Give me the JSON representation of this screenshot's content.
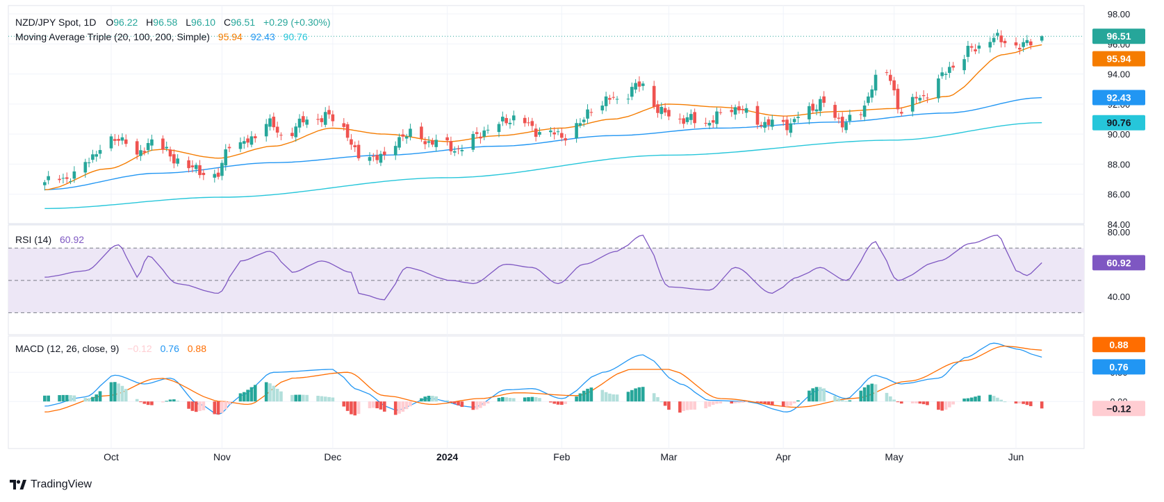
{
  "colors": {
    "up": "#26a69a",
    "down": "#ef5350",
    "ma20": "#f57c00",
    "ma100": "#2196f3",
    "ma200": "#26c6da",
    "rsi": "#7e57c2",
    "rsi_band": "#ede7f6",
    "macd": "#2196f3",
    "signal": "#ff6d00",
    "hist_up_strong": "#26a69a",
    "hist_up_weak": "#b2dfdb",
    "hist_down_strong": "#ef5350",
    "hist_down_weak": "#ffcdd2",
    "grid": "#f0f3fa",
    "text": "#131722"
  },
  "main_legend": {
    "symbol": "NZD/JPY Spot, 1D",
    "o_label": "O",
    "o_value": "96.22",
    "h_label": "H",
    "h_value": "96.58",
    "l_label": "L",
    "l_value": "96.10",
    "c_label": "C",
    "c_value": "96.51",
    "change": "+0.29 (+0.30%)",
    "ma_label": "Moving Average Triple (20, 100, 200, Simple)",
    "ma20_value": "95.94",
    "ma100_value": "92.43",
    "ma200_value": "90.76"
  },
  "rsi_legend": {
    "label": "RSI (14)",
    "value": "60.92"
  },
  "macd_legend": {
    "label": "MACD (12, 26, close, 9)",
    "hist_value": "−0.12",
    "macd_value": "0.76",
    "signal_value": "0.88"
  },
  "price_axis_ticks": [
    "98.00",
    "96.00",
    "94.00",
    "92.00",
    "90.00",
    "88.00",
    "86.00",
    "84.00"
  ],
  "rsi_axis_ticks": [
    "80.00",
    "40.00"
  ],
  "macd_axis_ticks": [
    "0.50",
    "0.00"
  ],
  "price_labels": {
    "last": "96.51",
    "ma20": "95.94",
    "ma100": "92.43",
    "ma200": "90.76"
  },
  "rsi_label_value": "60.92",
  "macd_labels": {
    "signal": "0.88",
    "macd": "0.76",
    "hist": "−0.12"
  },
  "time_axis": [
    {
      "label": "Oct",
      "bold": false
    },
    {
      "label": "Nov",
      "bold": false
    },
    {
      "label": "Dec",
      "bold": false
    },
    {
      "label": "2024",
      "bold": true
    },
    {
      "label": "Feb",
      "bold": false
    },
    {
      "label": "Mar",
      "bold": false
    },
    {
      "label": "Apr",
      "bold": false
    },
    {
      "label": "May",
      "bold": false
    },
    {
      "label": "Jun",
      "bold": false
    }
  ],
  "brand": {
    "name": "TradingView"
  },
  "chart_data": {
    "type": "candlestick",
    "title": "NZD/JPY Spot, 1D",
    "timeframe": "1D",
    "x_range": [
      "2023-09-14",
      "2024-06-10"
    ],
    "month_markers": [
      {
        "label": "Oct",
        "date": "2023-10-02"
      },
      {
        "label": "Nov",
        "date": "2023-11-01"
      },
      {
        "label": "Dec",
        "date": "2023-12-01"
      },
      {
        "label": "2024",
        "date": "2024-01-01"
      },
      {
        "label": "Feb",
        "date": "2024-02-01"
      },
      {
        "label": "Mar",
        "date": "2024-03-01"
      },
      {
        "label": "Apr",
        "date": "2024-04-01"
      },
      {
        "label": "May",
        "date": "2024-05-01"
      },
      {
        "label": "Jun",
        "date": "2024-06-03"
      }
    ],
    "price_panel": {
      "ylim": [
        84,
        98
      ],
      "close_anchors": [
        [
          "2023-09-14",
          86.8
        ],
        [
          "2023-09-22",
          87.2
        ],
        [
          "2023-09-29",
          89.0
        ],
        [
          "2023-10-05",
          89.8
        ],
        [
          "2023-10-09",
          88.4
        ],
        [
          "2023-10-13",
          89.7
        ],
        [
          "2023-10-19",
          88.4
        ],
        [
          "2023-10-25",
          87.6
        ],
        [
          "2023-10-31",
          87.2
        ],
        [
          "2023-11-03",
          89.5
        ],
        [
          "2023-11-08",
          89.4
        ],
        [
          "2023-11-13",
          91.0
        ],
        [
          "2023-11-17",
          89.8
        ],
        [
          "2023-11-23",
          90.8
        ],
        [
          "2023-11-29",
          91.2
        ],
        [
          "2023-12-04",
          90.4
        ],
        [
          "2023-12-08",
          88.4
        ],
        [
          "2023-12-13",
          88.6
        ],
        [
          "2023-12-15",
          88.3
        ],
        [
          "2023-12-20",
          90.0
        ],
        [
          "2023-12-28",
          89.5
        ],
        [
          "2024-01-04",
          89.0
        ],
        [
          "2024-01-12",
          90.3
        ],
        [
          "2024-01-19",
          91.1
        ],
        [
          "2024-01-26",
          90.2
        ],
        [
          "2024-02-01",
          89.9
        ],
        [
          "2024-02-06",
          90.6
        ],
        [
          "2024-02-09",
          91.8
        ],
        [
          "2024-02-16",
          92.4
        ],
        [
          "2024-02-23",
          93.3
        ],
        [
          "2024-02-28",
          91.4
        ],
        [
          "2024-03-05",
          91.0
        ],
        [
          "2024-03-11",
          90.8
        ],
        [
          "2024-03-19",
          91.8
        ],
        [
          "2024-03-25",
          90.8
        ],
        [
          "2024-04-01",
          90.6
        ],
        [
          "2024-04-08",
          91.5
        ],
        [
          "2024-04-11",
          92.2
        ],
        [
          "2024-04-16",
          90.8
        ],
        [
          "2024-04-22",
          91.3
        ],
        [
          "2024-04-26",
          93.8
        ],
        [
          "2024-04-29",
          93.9
        ],
        [
          "2024-05-03",
          91.6
        ],
        [
          "2024-05-08",
          92.4
        ],
        [
          "2024-05-13",
          93.6
        ],
        [
          "2024-05-17",
          94.6
        ],
        [
          "2024-05-22",
          95.6
        ],
        [
          "2024-05-27",
          96.4
        ],
        [
          "2024-05-31",
          96.2
        ],
        [
          "2024-06-05",
          95.8
        ],
        [
          "2024-06-07",
          96.22
        ],
        [
          "2024-06-10",
          96.51
        ]
      ],
      "ma20_anchors": [
        [
          "2023-09-14",
          86.3
        ],
        [
          "2023-10-01",
          87.7
        ],
        [
          "2023-10-15",
          89.0
        ],
        [
          "2023-10-31",
          88.4
        ],
        [
          "2023-11-15",
          89.2
        ],
        [
          "2023-12-01",
          90.4
        ],
        [
          "2023-12-15",
          90.0
        ],
        [
          "2024-01-01",
          89.5
        ],
        [
          "2024-01-15",
          89.9
        ],
        [
          "2024-02-01",
          90.4
        ],
        [
          "2024-02-15",
          91.0
        ],
        [
          "2024-03-01",
          92.0
        ],
        [
          "2024-03-15",
          91.8
        ],
        [
          "2024-04-01",
          91.2
        ],
        [
          "2024-04-15",
          91.5
        ],
        [
          "2024-05-01",
          91.7
        ],
        [
          "2024-05-15",
          92.5
        ],
        [
          "2024-05-31",
          95.3
        ],
        [
          "2024-06-10",
          95.94
        ]
      ],
      "ma100_anchors": [
        [
          "2023-09-14",
          86.3
        ],
        [
          "2023-10-15",
          87.4
        ],
        [
          "2023-11-15",
          88.1
        ],
        [
          "2023-12-15",
          88.6
        ],
        [
          "2024-01-15",
          89.2
        ],
        [
          "2024-02-15",
          89.9
        ],
        [
          "2024-03-15",
          90.4
        ],
        [
          "2024-04-15",
          90.8
        ],
        [
          "2024-05-15",
          91.4
        ],
        [
          "2024-06-10",
          92.43
        ]
      ],
      "ma200_anchors": [
        [
          "2023-09-14",
          85.05
        ],
        [
          "2023-11-01",
          85.8
        ],
        [
          "2024-01-01",
          87.1
        ],
        [
          "2024-03-01",
          88.6
        ],
        [
          "2024-05-01",
          89.6
        ],
        [
          "2024-06-10",
          90.76
        ]
      ],
      "last": {
        "open": 96.22,
        "high": 96.58,
        "low": 96.1,
        "close": 96.51,
        "change": 0.29,
        "change_pct": 0.3
      }
    },
    "rsi_panel": {
      "period": 14,
      "ylim": [
        22,
        80
      ],
      "levels": [
        70,
        50,
        30
      ],
      "anchors": [
        [
          "2023-09-14",
          52
        ],
        [
          "2023-09-25",
          56
        ],
        [
          "2023-10-04",
          72
        ],
        [
          "2023-10-09",
          52
        ],
        [
          "2023-10-12",
          65
        ],
        [
          "2023-10-20",
          48
        ],
        [
          "2023-10-31",
          42
        ],
        [
          "2023-11-06",
          62
        ],
        [
          "2023-11-14",
          68
        ],
        [
          "2023-11-20",
          55
        ],
        [
          "2023-11-28",
          62
        ],
        [
          "2023-12-06",
          55
        ],
        [
          "2023-12-08",
          42
        ],
        [
          "2023-12-15",
          38
        ],
        [
          "2023-12-21",
          58
        ],
        [
          "2024-01-02",
          50
        ],
        [
          "2024-01-08",
          48
        ],
        [
          "2024-01-17",
          60
        ],
        [
          "2024-01-24",
          58
        ],
        [
          "2024-01-31",
          48
        ],
        [
          "2024-02-07",
          60
        ],
        [
          "2024-02-16",
          68
        ],
        [
          "2024-02-23",
          78
        ],
        [
          "2024-03-01",
          46
        ],
        [
          "2024-03-12",
          44
        ],
        [
          "2024-03-19",
          58
        ],
        [
          "2024-03-29",
          42
        ],
        [
          "2024-04-05",
          52
        ],
        [
          "2024-04-11",
          58
        ],
        [
          "2024-04-18",
          50
        ],
        [
          "2024-04-26",
          74
        ],
        [
          "2024-05-02",
          50
        ],
        [
          "2024-05-13",
          62
        ],
        [
          "2024-05-22",
          73
        ],
        [
          "2024-05-29",
          78
        ],
        [
          "2024-06-03",
          56
        ],
        [
          "2024-06-06",
          53
        ],
        [
          "2024-06-10",
          60.92
        ]
      ]
    },
    "macd_panel": {
      "params": [
        12,
        26,
        "close",
        9
      ],
      "ylim": [
        -0.45,
        1.05
      ],
      "macd_anchors": [
        [
          "2023-09-14",
          -0.08
        ],
        [
          "2023-09-25",
          0.08
        ],
        [
          "2023-10-03",
          0.45
        ],
        [
          "2023-10-11",
          0.3
        ],
        [
          "2023-10-18",
          0.4
        ],
        [
          "2023-10-26",
          -0.05
        ],
        [
          "2023-10-31",
          -0.22
        ],
        [
          "2023-11-06",
          0.1
        ],
        [
          "2023-11-15",
          0.5
        ],
        [
          "2023-12-01",
          0.55
        ],
        [
          "2023-12-08",
          0.2
        ],
        [
          "2023-12-18",
          -0.15
        ],
        [
          "2023-12-27",
          0.05
        ],
        [
          "2024-01-08",
          -0.1
        ],
        [
          "2024-01-17",
          0.2
        ],
        [
          "2024-01-24",
          0.22
        ],
        [
          "2024-02-01",
          0.05
        ],
        [
          "2024-02-12",
          0.5
        ],
        [
          "2024-02-23",
          0.8
        ],
        [
          "2024-03-04",
          0.3
        ],
        [
          "2024-03-12",
          0.02
        ],
        [
          "2024-03-22",
          0.0
        ],
        [
          "2024-04-02",
          -0.18
        ],
        [
          "2024-04-11",
          0.2
        ],
        [
          "2024-04-18",
          0.05
        ],
        [
          "2024-04-26",
          0.45
        ],
        [
          "2024-05-03",
          0.3
        ],
        [
          "2024-05-13",
          0.4
        ],
        [
          "2024-05-20",
          0.75
        ],
        [
          "2024-05-28",
          1.0
        ],
        [
          "2024-06-03",
          0.9
        ],
        [
          "2024-06-10",
          0.76
        ]
      ],
      "signal_anchors": [
        [
          "2023-09-14",
          -0.18
        ],
        [
          "2023-10-01",
          0.1
        ],
        [
          "2023-10-15",
          0.4
        ],
        [
          "2023-11-01",
          0.0
        ],
        [
          "2023-11-08",
          -0.05
        ],
        [
          "2023-11-20",
          0.4
        ],
        [
          "2023-12-05",
          0.5
        ],
        [
          "2023-12-15",
          0.1
        ],
        [
          "2023-12-28",
          -0.05
        ],
        [
          "2024-01-10",
          0.05
        ],
        [
          "2024-01-20",
          0.15
        ],
        [
          "2024-02-05",
          0.1
        ],
        [
          "2024-02-20",
          0.55
        ],
        [
          "2024-03-01",
          0.55
        ],
        [
          "2024-03-15",
          0.05
        ],
        [
          "2024-04-05",
          -0.1
        ],
        [
          "2024-04-20",
          0.05
        ],
        [
          "2024-05-05",
          0.35
        ],
        [
          "2024-05-20",
          0.7
        ],
        [
          "2024-05-31",
          0.95
        ],
        [
          "2024-06-10",
          0.88
        ]
      ],
      "last": {
        "histogram": -0.12,
        "macd": 0.76,
        "signal": 0.88
      }
    },
    "grid": true,
    "legend": "top-left",
    "axis_position": "right"
  }
}
